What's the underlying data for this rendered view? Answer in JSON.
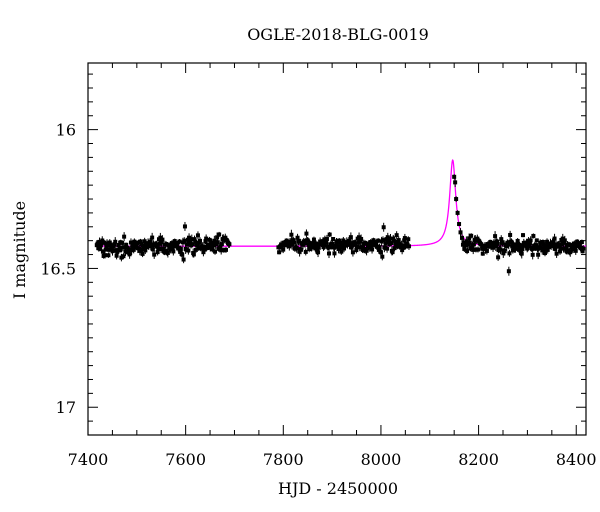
{
  "chart_data": {
    "type": "scatter",
    "title": "OGLE-2018-BLG-0019",
    "xlabel": "HJD - 2450000",
    "ylabel": "I magnitude",
    "xlim": [
      7400,
      8420
    ],
    "ylim": [
      17.1,
      15.76
    ],
    "y_inverted": true,
    "x_ticks": [
      "7400",
      "7600",
      "7800",
      "8000",
      "8200",
      "8400"
    ],
    "y_ticks": [
      "16",
      "16.5",
      "17"
    ],
    "grid": false,
    "legend": "none",
    "baseline_mag": 16.42,
    "series": [
      {
        "kind": "observations",
        "color": "#000000",
        "segments": [
          {
            "x_start": 7418,
            "x_end": 7690,
            "mag_center": 16.42,
            "mag_scatter": 0.018
          },
          {
            "x_start": 7790,
            "x_end": 8058,
            "mag_center": 16.415,
            "mag_scatter": 0.016
          },
          {
            "x_start": 8168,
            "x_end": 8415,
            "mag_center": 16.42,
            "mag_scatter": 0.016
          }
        ],
        "points": [
          {
            "x": 8150,
            "y": 16.17
          },
          {
            "x": 8152,
            "y": 16.19
          },
          {
            "x": 8154,
            "y": 16.25
          },
          {
            "x": 8157,
            "y": 16.3
          },
          {
            "x": 8160,
            "y": 16.34
          },
          {
            "x": 8163,
            "y": 16.37
          },
          {
            "x": 8166,
            "y": 16.39
          },
          {
            "x": 8240,
            "y": 16.46
          },
          {
            "x": 8262,
            "y": 16.51
          },
          {
            "x": 8291,
            "y": 16.38
          }
        ]
      },
      {
        "kind": "model",
        "color": "#ff00ff",
        "baseline": 16.42,
        "peak_x": 8147,
        "peak_mag": 16.11
      }
    ]
  }
}
